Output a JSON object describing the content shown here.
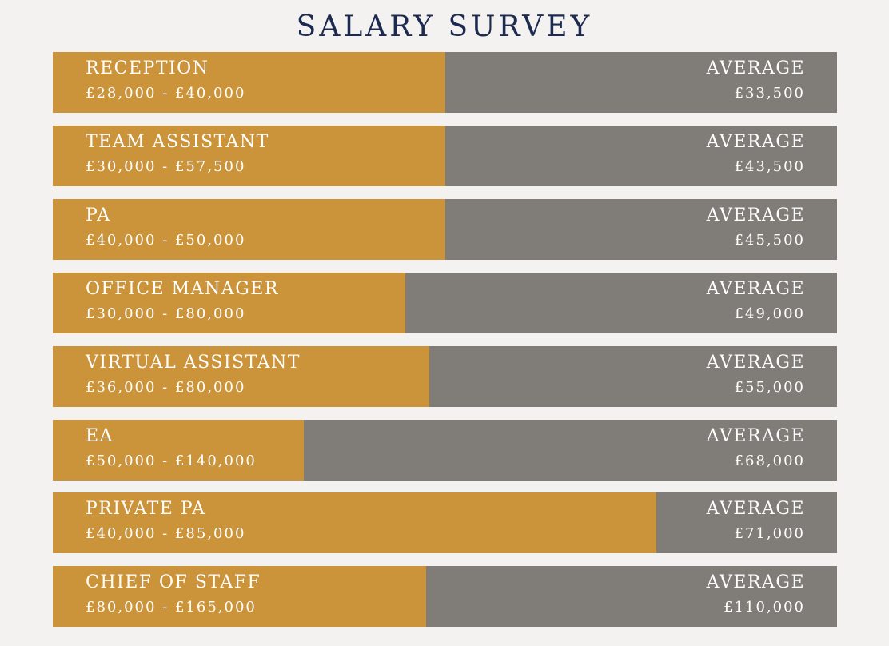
{
  "title": "SALARY SURVEY",
  "colors": {
    "background": "#f3f2f0",
    "title": "#1d2a4f",
    "fill": "#cb933a",
    "track": "#807d78",
    "text": "#ffffff"
  },
  "chart_data": {
    "type": "bar",
    "title": "SALARY SURVEY",
    "average_label": "AVERAGE",
    "rows": [
      {
        "role": "RECEPTION",
        "range": "£28,000 - £40,000",
        "average": "£33,500",
        "fill_fraction": 0.5
      },
      {
        "role": "TEAM ASSISTANT",
        "range": "£30,000 - £57,500",
        "average": "£43,500",
        "fill_fraction": 0.5
      },
      {
        "role": "PA",
        "range": "£40,000 - £50,000",
        "average": "£45,500",
        "fill_fraction": 0.5
      },
      {
        "role": "OFFICE MANAGER",
        "range": "£30,000 - £80,000",
        "average": "£49,000",
        "fill_fraction": 0.45
      },
      {
        "role": "VIRTUAL ASSISTANT",
        "range": "£36,000 - £80,000",
        "average": "£55,000",
        "fill_fraction": 0.48
      },
      {
        "role": "EA",
        "range": "£50,000 - £140,000",
        "average": "£68,000",
        "fill_fraction": 0.32
      },
      {
        "role": "PRIVATE PA",
        "range": "£40,000 - £85,000",
        "average": "£71,000",
        "fill_fraction": 0.77
      },
      {
        "role": "CHIEF OF STAFF",
        "range": "£80,000 - £165,000",
        "average": "£110,000",
        "fill_fraction": 0.476
      }
    ]
  }
}
